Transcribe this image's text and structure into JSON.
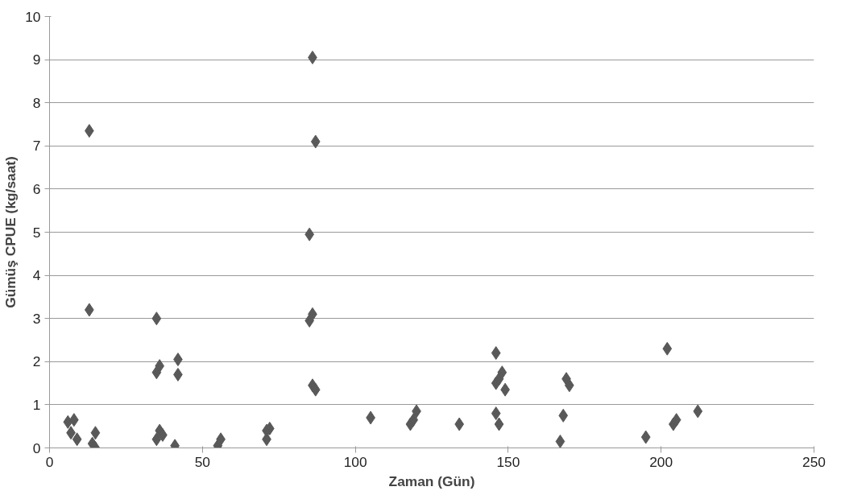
{
  "chart_data": {
    "type": "scatter",
    "xlabel": "Zaman (Gün)",
    "ylabel": "Gümüş CPUE (kg/saat)",
    "xlim": [
      0,
      250
    ],
    "xticks": [
      0,
      50,
      100,
      150,
      200,
      250
    ],
    "ylim": [
      0,
      10
    ],
    "yticks": [
      0,
      1,
      2,
      3,
      4,
      5,
      6,
      7,
      8,
      9,
      10
    ],
    "grid": "y",
    "marker": "diamond",
    "series": [
      {
        "color": "#595959",
        "x": [
          6,
          7,
          8,
          9,
          13,
          13,
          14,
          15,
          15,
          35,
          35,
          36,
          35,
          36,
          37,
          41,
          42,
          42,
          55,
          56,
          71,
          72,
          71,
          86,
          87,
          85,
          85,
          86,
          86,
          87,
          105,
          118,
          120,
          119,
          134,
          146,
          146,
          147,
          148,
          149,
          146,
          147,
          167,
          168,
          169,
          170,
          195,
          202,
          204,
          205,
          212
        ],
        "values": [
          0.6,
          0.35,
          0.65,
          0.2,
          7.35,
          3.2,
          0.1,
          0.35,
          0.0,
          3.0,
          1.75,
          1.9,
          0.2,
          0.4,
          0.3,
          0.05,
          2.05,
          1.7,
          0.05,
          0.2,
          0.2,
          0.45,
          0.4,
          9.05,
          7.1,
          4.95,
          2.95,
          3.1,
          1.45,
          1.35,
          0.7,
          0.55,
          0.85,
          0.65,
          0.55,
          2.2,
          1.5,
          1.6,
          1.75,
          1.35,
          0.8,
          0.55,
          0.15,
          0.75,
          1.6,
          1.45,
          0.25,
          2.3,
          0.55,
          0.65,
          0.85
        ]
      }
    ]
  }
}
